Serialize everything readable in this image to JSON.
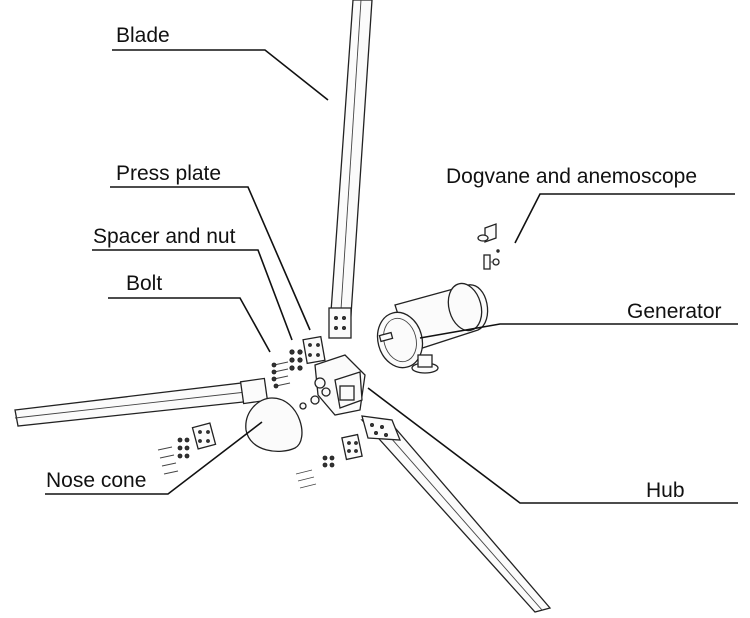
{
  "labels": {
    "blade": "Blade",
    "press_plate": "Press plate",
    "spacer_and_nut": "Spacer and nut",
    "bolt": "Bolt",
    "nose_cone": "Nose cone",
    "dogvane": "Dogvane and anemoscope",
    "generator": "Generator",
    "hub": "Hub"
  }
}
